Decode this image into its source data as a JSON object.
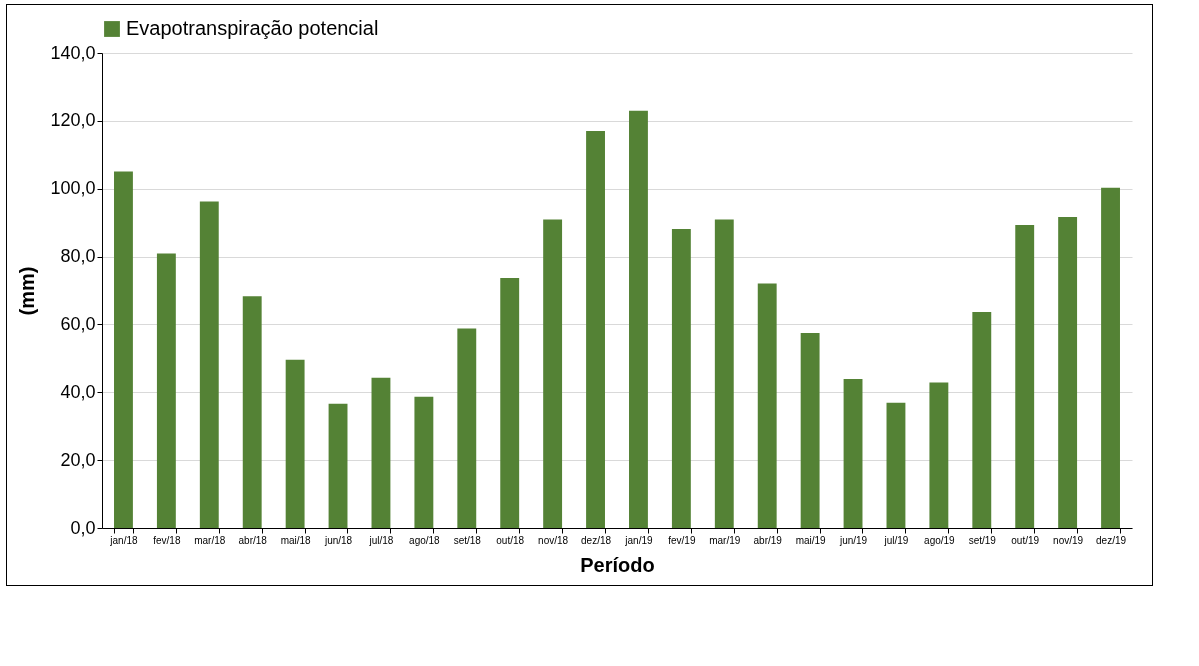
{
  "chart_data": {
    "type": "bar",
    "xlabel": "Período",
    "ylabel": "(mm)",
    "categories": [
      "jan/18",
      "fev/18",
      "mar/18",
      "abr/18",
      "mai/18",
      "jun/18",
      "jul/18",
      "ago/18",
      "set/18",
      "out/18",
      "nov/18",
      "dez/18",
      "jan/19",
      "fev/19",
      "mar/19",
      "abr/19",
      "mai/19",
      "jun/19",
      "jul/19",
      "ago/19",
      "set/19",
      "out/19",
      "nov/19",
      "dez/19"
    ],
    "series": [
      {
        "name": "Evapotranspiração potencial",
        "color": "#548235",
        "values": [
          105.1,
          80.9,
          96.2,
          68.3,
          49.6,
          36.6,
          44.3,
          38.7,
          58.8,
          73.7,
          90.9,
          117.0,
          123.0,
          88.1,
          90.9,
          72.1,
          57.5,
          43.9,
          36.9,
          42.9,
          63.7,
          89.3,
          91.7,
          100.3
        ]
      }
    ],
    "ylim": [
      0,
      140
    ],
    "yticks": [
      {
        "value": 0,
        "label": "0,0"
      },
      {
        "value": 20,
        "label": "20,0"
      },
      {
        "value": 40,
        "label": "40,0"
      },
      {
        "value": 60,
        "label": "60,0"
      },
      {
        "value": 80,
        "label": "80,0"
      },
      {
        "value": 100,
        "label": "100,0"
      },
      {
        "value": 120,
        "label": "120,0"
      },
      {
        "value": 140,
        "label": "140,0"
      }
    ],
    "grid": "y",
    "legend": "top"
  }
}
